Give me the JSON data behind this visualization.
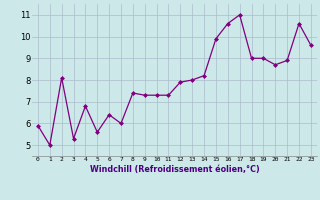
{
  "x": [
    0,
    1,
    2,
    3,
    4,
    5,
    6,
    7,
    8,
    9,
    10,
    11,
    12,
    13,
    14,
    15,
    16,
    17,
    18,
    19,
    20,
    21,
    22,
    23
  ],
  "y": [
    5.9,
    5.0,
    8.1,
    5.3,
    6.8,
    5.6,
    6.4,
    6.0,
    7.4,
    7.3,
    7.3,
    7.3,
    7.9,
    8.0,
    8.2,
    9.9,
    10.6,
    11.0,
    9.0,
    9.0,
    8.7,
    8.9,
    10.6,
    9.6
  ],
  "xlabel": "Windchill (Refroidissement éolien,°C)",
  "ylim": [
    4.5,
    11.5
  ],
  "xlim": [
    -0.5,
    23.5
  ],
  "yticks": [
    5,
    6,
    7,
    8,
    9,
    10,
    11
  ],
  "xticks": [
    0,
    1,
    2,
    3,
    4,
    5,
    6,
    7,
    8,
    9,
    10,
    11,
    12,
    13,
    14,
    15,
    16,
    17,
    18,
    19,
    20,
    21,
    22,
    23
  ],
  "line_color": "#800080",
  "marker_color": "#800080",
  "bg_color": "#cce8e8",
  "grid_color": "#aabccc"
}
